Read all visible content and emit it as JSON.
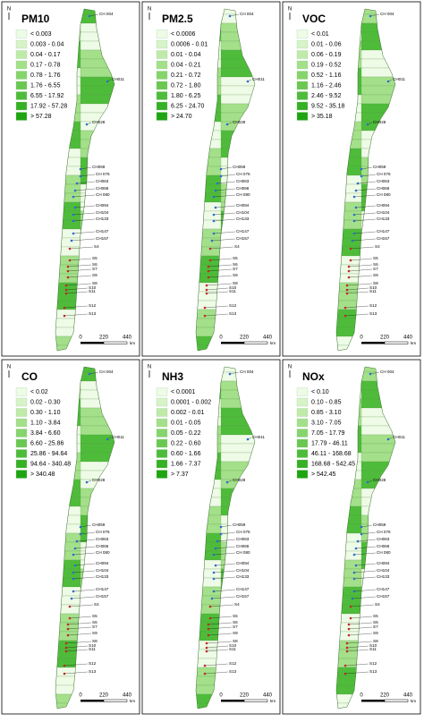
{
  "panels": [
    {
      "title": "PM10",
      "legend": [
        "< 0.003",
        "0.003 - 0.04",
        "0.04 - 0.17",
        "0.17 - 0.78",
        "0.78 - 1.76",
        "1.76 - 6.55",
        "6.55 - 17.92",
        "17.92 - 57.28",
        "> 57.28"
      ]
    },
    {
      "title": "PM2.5",
      "legend": [
        "< 0.0006",
        "0.0006 - 0.01",
        "0.01 - 0.04",
        "0.04 - 0.21",
        "0.21 - 0.72",
        "0.72 - 1.80",
        "1.80 - 6.25",
        "6.25 - 24.70",
        "> 24.70"
      ]
    },
    {
      "title": "VOC",
      "legend": [
        "< 0.01",
        "0.01 - 0.06",
        "0.06 - 0.19",
        "0.19 - 0.52",
        "0.52 - 1.16",
        "1.16 - 2.46",
        "2.46 - 9.52",
        "9.52 - 35.18",
        "> 35.18"
      ]
    },
    {
      "title": "CO",
      "legend": [
        "< 0.02",
        "0.02 - 0.30",
        "0.30 - 1.10",
        "1.10 - 3.84",
        "3.84 - 6.60",
        "6.60 - 25.86",
        "25.86 - 94.64",
        "94.64 - 340.48",
        "> 340.48"
      ]
    },
    {
      "title": "NH3",
      "legend": [
        "< 0.0001",
        "0.0001 - 0.002",
        "0.002 - 0.01",
        "0.01 - 0.05",
        "0.05 - 0.22",
        "0.22 - 0.60",
        "0.60 - 1.66",
        "1.66 - 7.37",
        "> 7.37"
      ]
    },
    {
      "title": "NOx",
      "legend": [
        "< 0.10",
        "0.10 - 0.85",
        "0.85 - 3.10",
        "3.10 - 7.05",
        "7.05 - 17.79",
        "17.79 - 46.11",
        "46.11 - 168.68",
        "168.68 - 542.45",
        "> 542.45"
      ]
    }
  ],
  "legend_colors": [
    "#eefbe6",
    "#d8f3c8",
    "#bfeaa8",
    "#a4e08a",
    "#86d46c",
    "#6ac852",
    "#4ebc3a",
    "#36b024",
    "#1fa412"
  ],
  "north": "N",
  "stations": [
    "CH 004",
    "CH011",
    "CH028",
    "CH059",
    "CH 076",
    "CH063",
    "CH066",
    "CH 080",
    "CH094",
    "CH104",
    "CH133",
    "CH147",
    "CH157",
    "S4",
    "S5",
    "S6",
    "S7",
    "S9",
    "S8",
    "S10",
    "S11",
    "S12",
    "S13"
  ],
  "scale": [
    "0",
    "220",
    "440"
  ],
  "scale_unit": "km"
}
